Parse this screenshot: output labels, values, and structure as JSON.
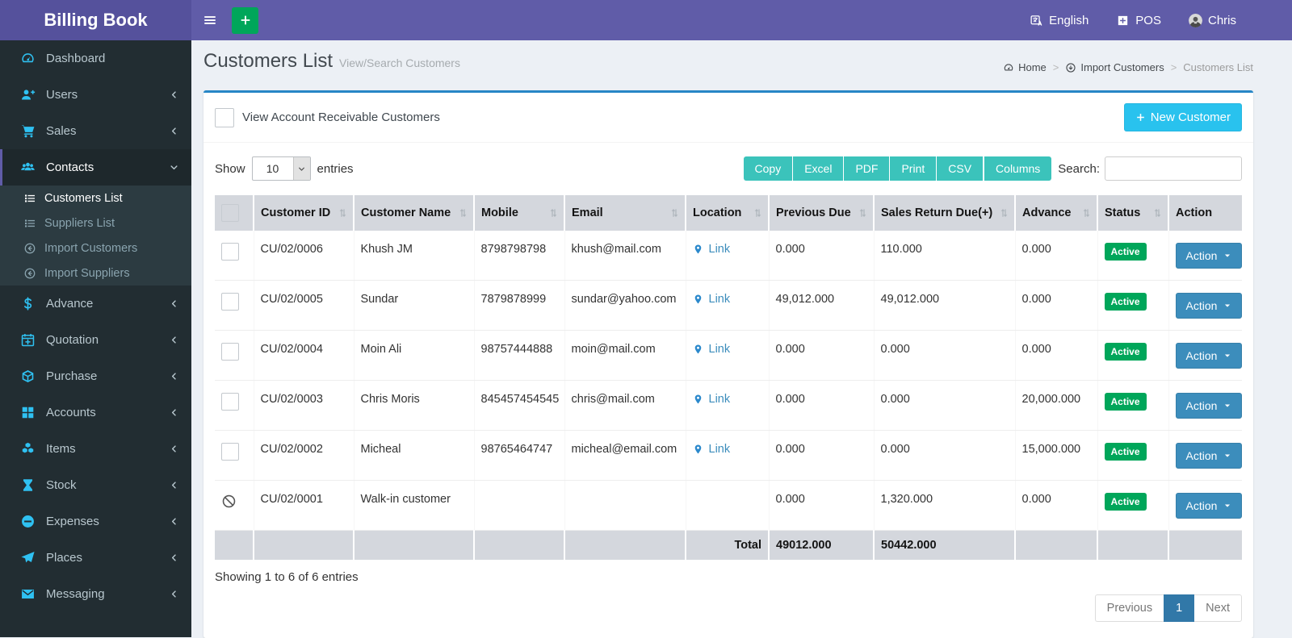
{
  "app": {
    "title": "Billing Book"
  },
  "topbar": {
    "language_label": "English",
    "pos_label": "POS",
    "username": "Chris"
  },
  "sidebar": {
    "items": [
      {
        "label": "Dashboard",
        "icon": "gauge"
      },
      {
        "label": "Users",
        "icon": "user-plus",
        "chevron": "left"
      },
      {
        "label": "Sales",
        "icon": "cart",
        "chevron": "left"
      },
      {
        "label": "Contacts",
        "icon": "users",
        "chevron": "down",
        "active": true,
        "children": [
          {
            "label": "Customers List",
            "icon": "list",
            "active": true
          },
          {
            "label": "Suppliers List",
            "icon": "list"
          },
          {
            "label": "Import Customers",
            "icon": "circle-arrow"
          },
          {
            "label": "Import Suppliers",
            "icon": "circle-arrow"
          }
        ]
      },
      {
        "label": "Advance",
        "icon": "dollar",
        "chevron": "left"
      },
      {
        "label": "Quotation",
        "icon": "calendar-plus",
        "chevron": "left"
      },
      {
        "label": "Purchase",
        "icon": "cube",
        "chevron": "left"
      },
      {
        "label": "Accounts",
        "icon": "grid",
        "chevron": "left"
      },
      {
        "label": "Items",
        "icon": "cubes",
        "chevron": "left"
      },
      {
        "label": "Stock",
        "icon": "hourglass",
        "chevron": "left"
      },
      {
        "label": "Expenses",
        "icon": "minus-circle",
        "chevron": "left"
      },
      {
        "label": "Places",
        "icon": "paper-plane",
        "chevron": "left"
      },
      {
        "label": "Messaging",
        "icon": "envelope",
        "chevron": "left"
      }
    ]
  },
  "page": {
    "title": "Customers List",
    "subtitle": "View/Search Customers",
    "breadcrumb": [
      {
        "label": "Home",
        "icon": "gauge"
      },
      {
        "label": "Import Customers",
        "icon": "circle-down"
      },
      {
        "label": "Customers List"
      }
    ]
  },
  "box": {
    "filter_checkbox_label": "View Account Receivable Customers",
    "new_customer_label": "New Customer"
  },
  "controls": {
    "show_label": "Show",
    "page_size": "10",
    "entries_label": "entries",
    "export_buttons": [
      "Copy",
      "Excel",
      "PDF",
      "Print",
      "CSV",
      "Columns"
    ],
    "search_label": "Search:",
    "search_value": ""
  },
  "table": {
    "columns": [
      {
        "label": "",
        "type": "checkbox"
      },
      {
        "label": "Customer ID",
        "sortable": true
      },
      {
        "label": "Customer Name",
        "sortable": true
      },
      {
        "label": "Mobile",
        "sortable": true
      },
      {
        "label": "Email",
        "sortable": true
      },
      {
        "label": "Location",
        "sortable": true
      },
      {
        "label": "Previous Due",
        "sortable": true
      },
      {
        "label": "Sales Return Due(+)",
        "sortable": true
      },
      {
        "label": "Advance",
        "sortable": true
      },
      {
        "label": "Status",
        "sortable": true
      },
      {
        "label": "Action",
        "sortable": false
      }
    ],
    "link_label": "Link",
    "action_label": "Action",
    "rows": [
      {
        "selector": "checkbox",
        "customer_id": "CU/02/0006",
        "name": "Khush JM",
        "mobile": "8798798798",
        "email": "khush@mail.com",
        "location_link": true,
        "previous_due": "0.000",
        "sales_return_due": "110.000",
        "advance": "0.000",
        "status": "Active"
      },
      {
        "selector": "checkbox",
        "customer_id": "CU/02/0005",
        "name": "Sundar",
        "mobile": "7879878999",
        "email": "sundar@yahoo.com",
        "location_link": true,
        "previous_due": "49,012.000",
        "sales_return_due": "49,012.000",
        "advance": "0.000",
        "status": "Active"
      },
      {
        "selector": "checkbox",
        "customer_id": "CU/02/0004",
        "name": "Moin Ali",
        "mobile": "98757444888",
        "email": "moin@mail.com",
        "location_link": true,
        "previous_due": "0.000",
        "sales_return_due": "0.000",
        "advance": "0.000",
        "status": "Active"
      },
      {
        "selector": "checkbox",
        "customer_id": "CU/02/0003",
        "name": "Chris Moris",
        "mobile": "845457454545",
        "email": "chris@mail.com",
        "location_link": true,
        "previous_due": "0.000",
        "sales_return_due": "0.000",
        "advance": "20,000.000",
        "status": "Active"
      },
      {
        "selector": "checkbox",
        "customer_id": "CU/02/0002",
        "name": "Micheal",
        "mobile": "98765464747",
        "email": "micheal@email.com",
        "location_link": true,
        "previous_due": "0.000",
        "sales_return_due": "0.000",
        "advance": "15,000.000",
        "status": "Active"
      },
      {
        "selector": "ban",
        "customer_id": "CU/02/0001",
        "name": "Walk-in customer",
        "mobile": "",
        "email": "",
        "location_link": false,
        "previous_due": "0.000",
        "sales_return_due": "1,320.000",
        "advance": "0.000",
        "status": "Active"
      }
    ],
    "total_row": {
      "label": "Total",
      "previous_due": "49012.000",
      "sales_return_due": "50442.000"
    }
  },
  "footer": {
    "summary": "Showing 1 to 6 of 6 entries",
    "pagination": {
      "previous_label": "Previous",
      "page": "1",
      "next_label": "Next"
    }
  },
  "colors": {
    "navbar": "#605ca8",
    "logo_bg": "#55519c",
    "accent_green": "#00a65a",
    "sidebar_bg": "#222d32",
    "sidebar_icon": "#2fc1f2",
    "box_border": "#2786c6",
    "aqua": "#29c2ee",
    "teal": "#3bc3bb",
    "link": "#3c8dbc",
    "badge_active": "#00a65a",
    "action_btn": "#3c8dbc",
    "page_active": "#3178a8"
  }
}
